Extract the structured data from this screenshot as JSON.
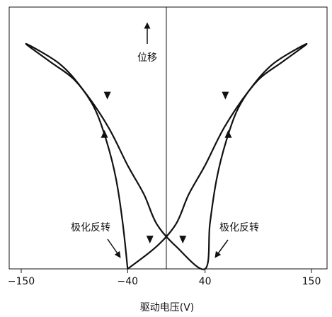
{
  "chart_data": {
    "type": "line",
    "title": "",
    "xlabel": "驱动电压(V)",
    "ylabel": "位移",
    "xlim": [
      -150,
      150
    ],
    "ylim": [
      0,
      1
    ],
    "xticks": [
      -150,
      -40,
      40,
      150
    ],
    "xtick_labels": [
      "−150",
      "−40",
      "40",
      "150"
    ],
    "grid": false,
    "legend": "none",
    "series": [
      {
        "points": [
          [
            -40,
            0
          ],
          [
            -45,
            0.2
          ],
          [
            -52,
            0.4
          ],
          [
            -62,
            0.57
          ],
          [
            -75,
            0.72
          ],
          [
            -95,
            0.84
          ],
          [
            -120,
            0.92
          ],
          [
            -145,
            1.0
          ],
          [
            -110,
            0.91
          ],
          [
            -85,
            0.79
          ],
          [
            -60,
            0.63
          ],
          [
            -40,
            0.46
          ],
          [
            -23,
            0.33
          ],
          [
            -10,
            0.2
          ],
          [
            10,
            0.1
          ],
          [
            40,
            0
          ],
          [
            45,
            0.2
          ],
          [
            52,
            0.4
          ],
          [
            62,
            0.57
          ],
          [
            75,
            0.72
          ],
          [
            95,
            0.84
          ],
          [
            120,
            0.92
          ],
          [
            145,
            1.0
          ],
          [
            110,
            0.91
          ],
          [
            85,
            0.79
          ],
          [
            60,
            0.63
          ],
          [
            40,
            0.46
          ],
          [
            23,
            0.33
          ],
          [
            10,
            0.2
          ],
          [
            -10,
            0.1
          ],
          [
            -40,
            0
          ]
        ],
        "arrows": [
          {
            "x": -64,
            "y": 0.6,
            "dir": "up"
          },
          {
            "x": -61,
            "y": 0.77,
            "dir": "down"
          },
          {
            "x": 17,
            "y": 0.13,
            "dir": "down"
          },
          {
            "x": 64,
            "y": 0.6,
            "dir": "up"
          },
          {
            "x": 61,
            "y": 0.77,
            "dir": "down"
          },
          {
            "x": -17,
            "y": 0.13,
            "dir": "down"
          }
        ]
      }
    ],
    "vertical_line_x": 0,
    "annotations": [
      {
        "text": "极化反转",
        "target_x": -40,
        "target_y": 0.05
      },
      {
        "text": "极化反转",
        "target_x": 40,
        "target_y": 0.05
      }
    ]
  }
}
